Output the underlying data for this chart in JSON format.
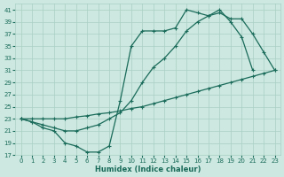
{
  "xlabel": "Humidex (Indice chaleur)",
  "bg_color": "#cce8e0",
  "grid_color": "#aacfc4",
  "line_color": "#1a6b5a",
  "xlim": [
    -0.5,
    23.5
  ],
  "ylim": [
    17,
    42
  ],
  "xticks": [
    0,
    1,
    2,
    3,
    4,
    5,
    6,
    7,
    8,
    9,
    10,
    11,
    12,
    13,
    14,
    15,
    16,
    17,
    18,
    19,
    20,
    21,
    22,
    23
  ],
  "yticks": [
    17,
    19,
    21,
    23,
    25,
    27,
    29,
    31,
    33,
    35,
    37,
    39,
    41
  ],
  "line1_x": [
    0,
    1,
    2,
    3,
    4,
    5,
    6,
    7,
    8,
    9,
    10,
    11,
    12,
    13,
    14,
    15,
    16,
    17,
    18,
    19,
    20,
    21
  ],
  "line1_y": [
    23,
    22.5,
    21.5,
    21,
    19,
    18.5,
    17.5,
    17.5,
    18.5,
    26,
    35,
    37.5,
    37.5,
    37.5,
    38,
    41,
    40.5,
    40,
    41,
    39,
    36.5,
    31
  ],
  "line2_x": [
    0,
    1,
    2,
    3,
    4,
    5,
    6,
    7,
    8,
    9,
    10,
    11,
    12,
    13,
    14,
    15,
    16,
    17,
    18,
    19,
    20,
    21,
    22,
    23
  ],
  "line2_y": [
    23,
    22.5,
    22,
    21.5,
    21,
    21,
    21.5,
    22,
    23,
    24,
    26,
    29,
    31.5,
    33,
    35,
    37.5,
    39,
    40,
    40.5,
    39.5,
    39.5,
    37,
    34,
    31
  ],
  "line3_x": [
    0,
    1,
    2,
    3,
    4,
    5,
    6,
    7,
    8,
    9,
    10,
    11,
    12,
    13,
    14,
    15,
    16,
    17,
    18,
    19,
    20,
    21,
    22,
    23
  ],
  "line3_y": [
    23,
    23,
    23,
    23,
    23,
    23.3,
    23.5,
    23.8,
    24,
    24.3,
    24.7,
    25,
    25.5,
    26,
    26.5,
    27,
    27.5,
    28,
    28.5,
    29,
    29.5,
    30,
    30.5,
    31
  ]
}
